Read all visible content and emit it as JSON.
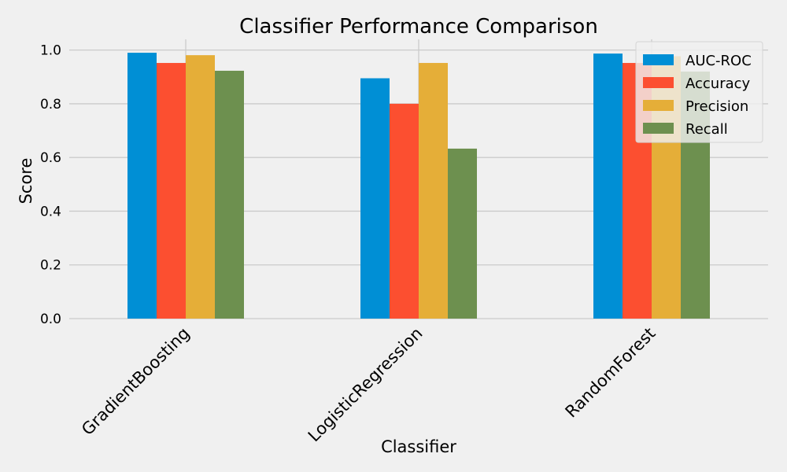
{
  "chart_data": {
    "type": "bar",
    "title": "Classifier Performance Comparison",
    "xlabel": "Classifier",
    "ylabel": "Score",
    "categories": [
      "GradientBoosting",
      "LogisticRegression",
      "RandomForest"
    ],
    "series": [
      {
        "name": "AUC-ROC",
        "color": "#008fd5",
        "values": [
          0.99,
          0.895,
          0.987
        ]
      },
      {
        "name": "Accuracy",
        "color": "#fc4f30",
        "values": [
          0.952,
          0.8,
          0.952
        ]
      },
      {
        "name": "Precision",
        "color": "#e5ae38",
        "values": [
          0.981,
          0.952,
          0.977
        ]
      },
      {
        "name": "Recall",
        "color": "#6d904f",
        "values": [
          0.923,
          0.633,
          0.92
        ]
      }
    ],
    "ylim": [
      0,
      1.04
    ],
    "yticks": [
      "0.0",
      "0.2",
      "0.4",
      "0.6",
      "0.8",
      "1.0"
    ],
    "grid": true,
    "legend_position": "top-right"
  }
}
